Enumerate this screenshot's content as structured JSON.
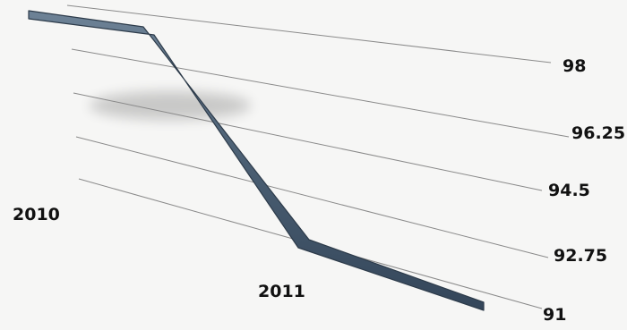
{
  "chart_data": {
    "type": "line",
    "title": "",
    "xlabel": "",
    "ylabel": "",
    "categories": [
      "2010",
      "2011"
    ],
    "series": [
      {
        "values": [
          98,
          91
        ]
      }
    ],
    "ylim": [
      91,
      98
    ],
    "y_ticks": [
      "98",
      "96.25",
      "94.5",
      "92.75",
      "91"
    ],
    "grid": true,
    "colors": {
      "line": "#4b5f73",
      "line_edge": "#2d3b4a",
      "grid": "#8a8a8a",
      "background": "#f6f6f5"
    }
  }
}
